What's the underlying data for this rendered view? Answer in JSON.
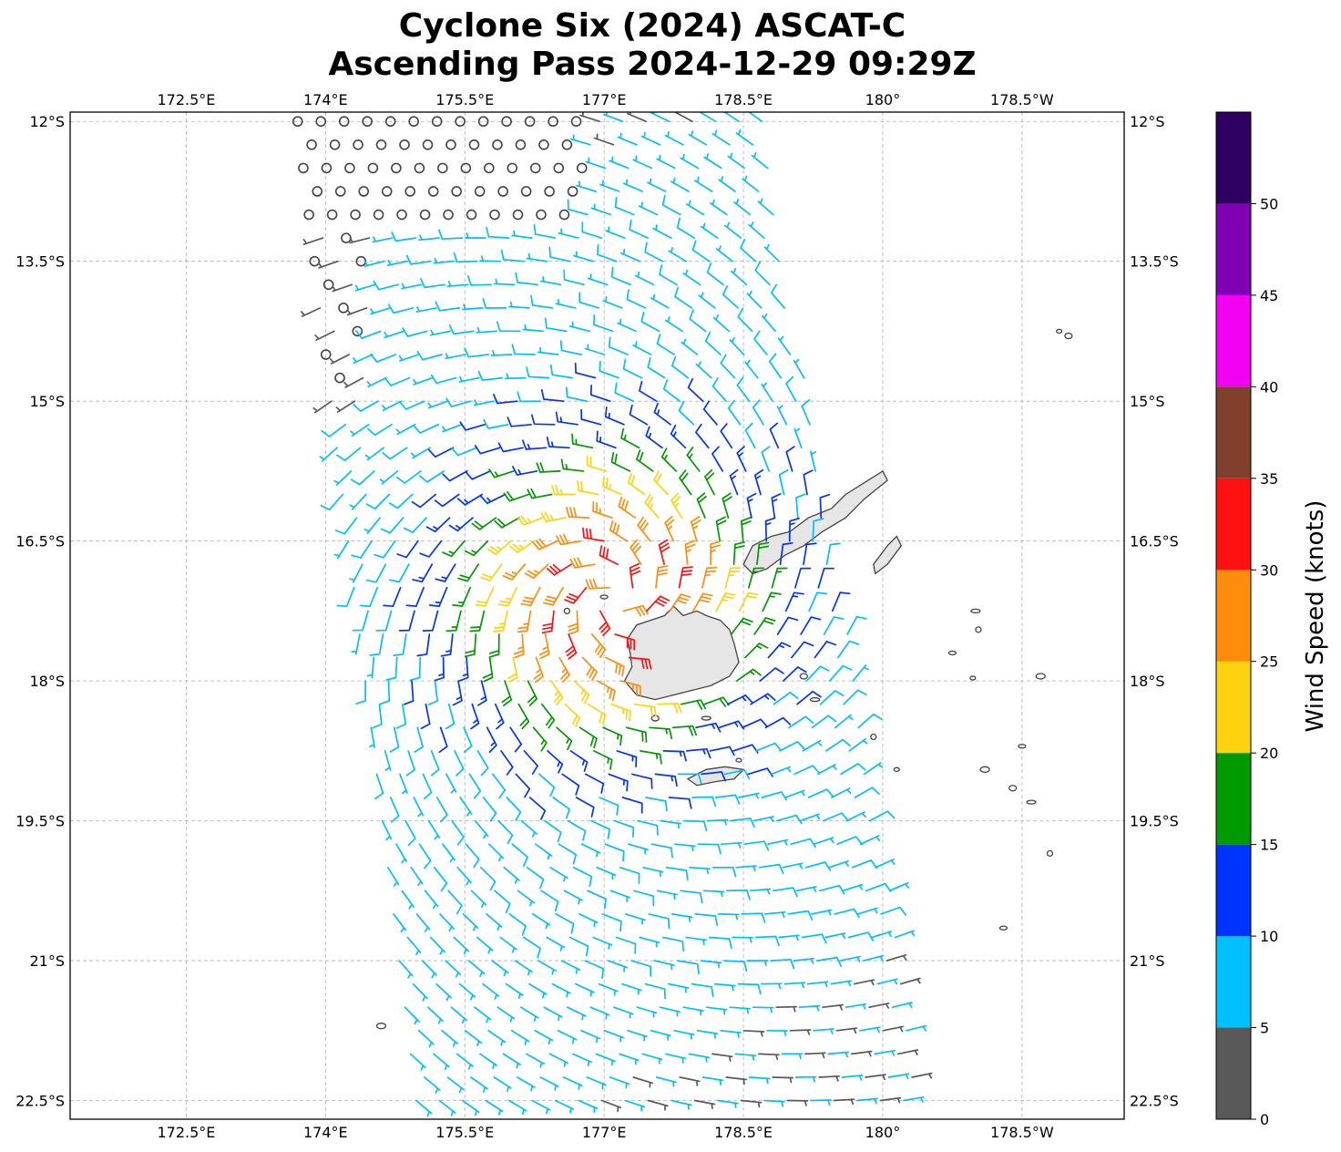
{
  "title": {
    "line1": "Cyclone Six (2024) ASCAT-C",
    "line2": "Ascending Pass 2024-12-29 09:29Z"
  },
  "map": {
    "lon_min": 171.25,
    "lon_max": 182.6,
    "lat_min": -22.7,
    "lat_max": -11.9,
    "lon_ticks": [
      {
        "value": 172.5,
        "label": "172.5°E"
      },
      {
        "value": 174.0,
        "label": "174°E"
      },
      {
        "value": 175.5,
        "label": "175.5°E"
      },
      {
        "value": 177.0,
        "label": "177°E"
      },
      {
        "value": 178.5,
        "label": "178.5°E"
      },
      {
        "value": 180.0,
        "label": "180°"
      },
      {
        "value": 181.5,
        "label": "178.5°W"
      }
    ],
    "lat_ticks": [
      {
        "value": -12.0,
        "label": "12°S"
      },
      {
        "value": -13.5,
        "label": "13.5°S"
      },
      {
        "value": -15.0,
        "label": "15°S"
      },
      {
        "value": -16.5,
        "label": "16.5°S"
      },
      {
        "value": -18.0,
        "label": "18°S"
      },
      {
        "value": -19.5,
        "label": "19.5°S"
      },
      {
        "value": -21.0,
        "label": "21°S"
      },
      {
        "value": -22.5,
        "label": "22.5°S"
      }
    ],
    "storm_center": {
      "lon": 177.1,
      "lat": -17.1
    },
    "swath": {
      "north_lat": -12.0,
      "south_lat": -22.7,
      "north_west_lon": 173.7,
      "north_east_lon": 178.7,
      "south_west_lon": 175.0,
      "south_east_lon": 180.5
    }
  },
  "colorbar": {
    "label": "Wind Speed (knots)",
    "min": 0,
    "max": 55,
    "tick_values": [
      0,
      5,
      10,
      15,
      20,
      25,
      30,
      35,
      40,
      45,
      50
    ],
    "tick_labels": [
      "0",
      "5",
      "10",
      "15",
      "20",
      "25",
      "30",
      "35",
      "40",
      "45",
      "50"
    ],
    "bins": [
      {
        "from": 0,
        "to": 5,
        "color": "#595959"
      },
      {
        "from": 5,
        "to": 10,
        "color": "#00bfff"
      },
      {
        "from": 10,
        "to": 15,
        "color": "#0033ff"
      },
      {
        "from": 15,
        "to": 20,
        "color": "#009900"
      },
      {
        "from": 20,
        "to": 25,
        "color": "#ffd20f"
      },
      {
        "from": 25,
        "to": 30,
        "color": "#ff8c0a"
      },
      {
        "from": 30,
        "to": 35,
        "color": "#ff1010"
      },
      {
        "from": 35,
        "to": 40,
        "color": "#7f3f2a"
      },
      {
        "from": 40,
        "to": 45,
        "color": "#f200f2"
      },
      {
        "from": 45,
        "to": 50,
        "color": "#8000b3"
      },
      {
        "from": 50,
        "to": 55,
        "color": "#2d0060"
      }
    ]
  },
  "land": {
    "viti_levu": [
      [
        177.25,
        -17.55
      ],
      [
        177.35,
        -17.4
      ],
      [
        177.5,
        -17.35
      ],
      [
        177.65,
        -17.3
      ],
      [
        177.75,
        -17.2
      ],
      [
        177.85,
        -17.3
      ],
      [
        178.0,
        -17.25
      ],
      [
        178.1,
        -17.3
      ],
      [
        178.25,
        -17.35
      ],
      [
        178.35,
        -17.45
      ],
      [
        178.4,
        -17.6
      ],
      [
        178.45,
        -17.8
      ],
      [
        178.35,
        -17.95
      ],
      [
        178.15,
        -18.05
      ],
      [
        177.95,
        -18.1
      ],
      [
        177.75,
        -18.15
      ],
      [
        177.55,
        -18.2
      ],
      [
        177.35,
        -18.15
      ],
      [
        177.22,
        -18.0
      ],
      [
        177.3,
        -17.85
      ],
      [
        177.28,
        -17.7
      ]
    ],
    "vanua_levu": [
      [
        178.5,
        -16.75
      ],
      [
        178.6,
        -16.55
      ],
      [
        178.8,
        -16.45
      ],
      [
        179.0,
        -16.4
      ],
      [
        179.2,
        -16.25
      ],
      [
        179.45,
        -16.15
      ],
      [
        179.6,
        -16.0
      ],
      [
        180.0,
        -15.75
      ],
      [
        180.05,
        -15.85
      ],
      [
        179.8,
        -16.05
      ],
      [
        179.6,
        -16.25
      ],
      [
        179.35,
        -16.4
      ],
      [
        179.15,
        -16.55
      ],
      [
        178.95,
        -16.65
      ],
      [
        178.75,
        -16.8
      ],
      [
        178.6,
        -16.85
      ]
    ],
    "taveuni": [
      [
        179.9,
        -16.75
      ],
      [
        180.05,
        -16.55
      ],
      [
        180.15,
        -16.45
      ],
      [
        180.2,
        -16.55
      ],
      [
        180.05,
        -16.75
      ],
      [
        179.92,
        -16.85
      ]
    ],
    "kadavu": [
      [
        177.9,
        -19.05
      ],
      [
        178.1,
        -18.95
      ],
      [
        178.3,
        -18.92
      ],
      [
        178.5,
        -18.95
      ],
      [
        178.4,
        -19.05
      ],
      [
        178.2,
        -19.08
      ],
      [
        178.0,
        -19.12
      ]
    ],
    "islets": [
      [
        181.9,
        -14.25
      ],
      [
        182.0,
        -14.3
      ],
      [
        181.0,
        -17.25
      ],
      [
        181.03,
        -17.45
      ],
      [
        180.75,
        -17.7
      ],
      [
        181.7,
        -17.95
      ],
      [
        180.97,
        -17.97
      ],
      [
        179.15,
        -17.95
      ],
      [
        179.27,
        -18.2
      ],
      [
        179.9,
        -18.6
      ],
      [
        181.5,
        -18.7
      ],
      [
        181.1,
        -18.95
      ],
      [
        180.15,
        -18.95
      ],
      [
        181.4,
        -19.15
      ],
      [
        181.6,
        -19.3
      ],
      [
        181.8,
        -19.85
      ],
      [
        181.3,
        -20.65
      ],
      [
        174.6,
        -21.7
      ],
      [
        178.45,
        -18.85
      ],
      [
        177.55,
        -18.4
      ],
      [
        178.1,
        -18.4
      ],
      [
        176.6,
        -17.25
      ],
      [
        177.0,
        -17.1
      ]
    ]
  }
}
